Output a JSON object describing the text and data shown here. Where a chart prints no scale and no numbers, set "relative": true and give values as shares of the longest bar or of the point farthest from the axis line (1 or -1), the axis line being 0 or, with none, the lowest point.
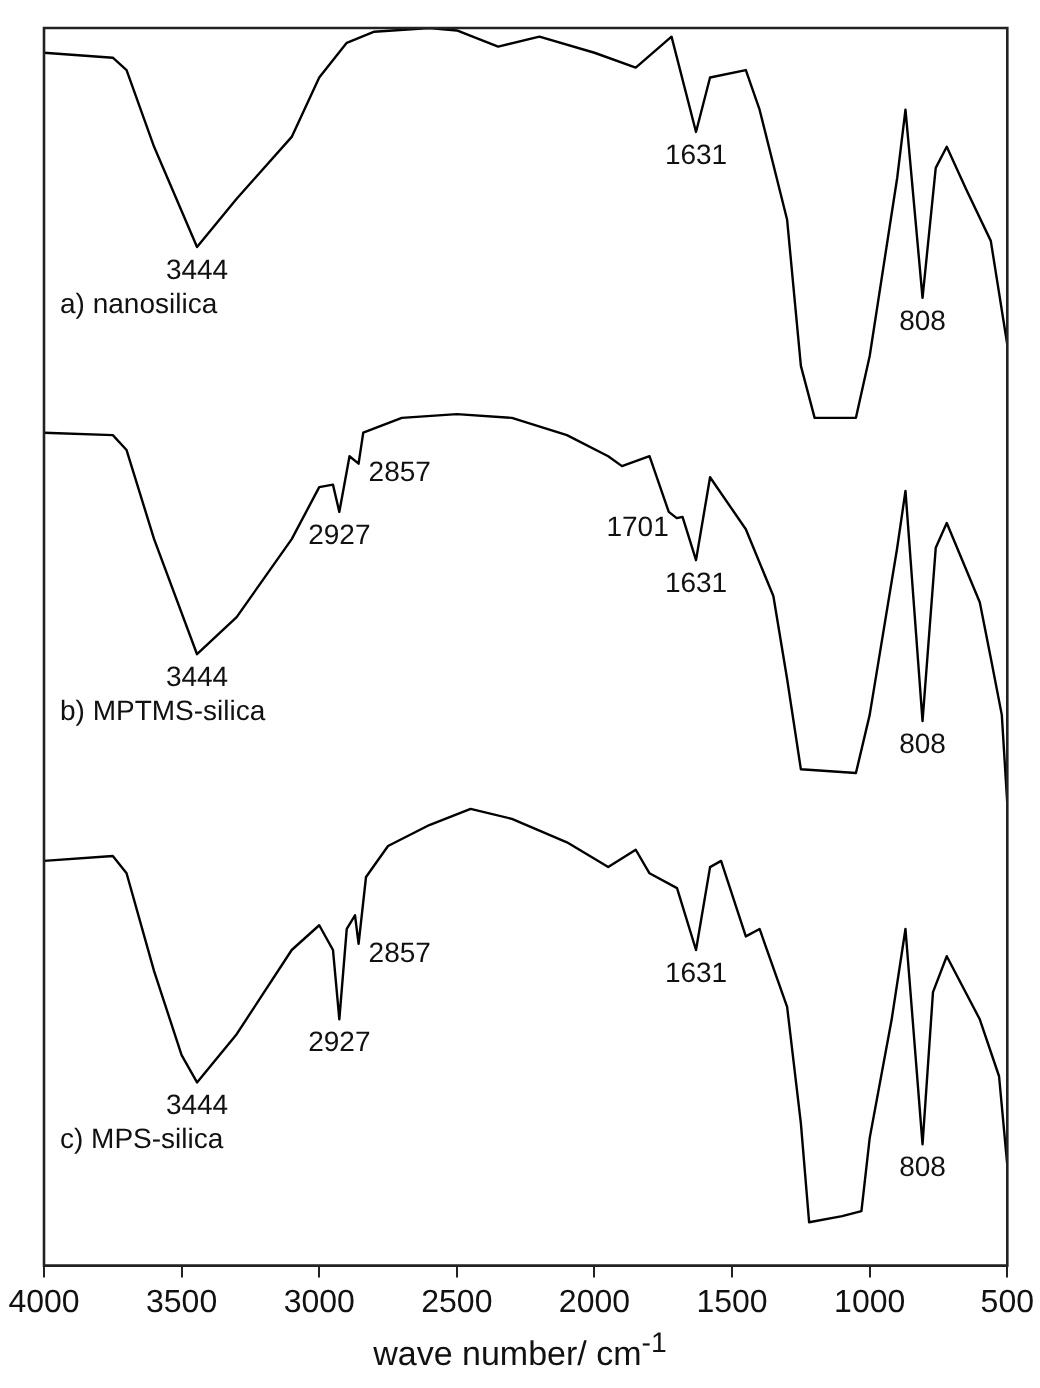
{
  "chart_data": {
    "type": "line",
    "relative": true,
    "xlabel": "wave number/ cm$^{-1}$",
    "xlim": [
      4000,
      500
    ],
    "xticks": [
      4000,
      3500,
      3000,
      2500,
      2000,
      1500,
      1000,
      500
    ],
    "grid": false,
    "legend": false,
    "marker": "none",
    "line_style": "solid",
    "series": [
      {
        "name": "a) nanosilica",
        "color": "#000000",
        "x": [
          4000,
          3750,
          3700,
          3600,
          3444,
          3300,
          3100,
          3000,
          2900,
          2800,
          2600,
          2500,
          2350,
          2200,
          2000,
          1850,
          1720,
          1631,
          1580,
          1450,
          1400,
          1300,
          1250,
          1200,
          1050,
          1000,
          900,
          870,
          808,
          760,
          720,
          650,
          560,
          500
        ],
        "values": [
          0.98,
          0.976,
          0.966,
          0.904,
          0.823,
          0.862,
          0.912,
          0.96,
          0.988,
          0.997,
          1.0,
          0.998,
          0.985,
          0.993,
          0.98,
          0.968,
          0.993,
          0.916,
          0.96,
          0.966,
          0.934,
          0.845,
          0.727,
          0.685,
          0.685,
          0.735,
          0.879,
          0.934,
          0.782,
          0.887,
          0.904,
          0.87,
          0.828,
          0.744
        ]
      },
      {
        "name": "b) MPTMS-silica",
        "color": "#000000",
        "x": [
          4000,
          3750,
          3700,
          3600,
          3444,
          3300,
          3100,
          3000,
          2950,
          2927,
          2890,
          2857,
          2840,
          2700,
          2500,
          2300,
          2100,
          1950,
          1900,
          1800,
          1730,
          1701,
          1680,
          1631,
          1580,
          1450,
          1350,
          1300,
          1250,
          1050,
          1000,
          900,
          870,
          808,
          760,
          720,
          600,
          560,
          520,
          500
        ],
        "values": [
          0.673,
          0.671,
          0.659,
          0.587,
          0.494,
          0.524,
          0.587,
          0.629,
          0.631,
          0.609,
          0.654,
          0.648,
          0.673,
          0.685,
          0.688,
          0.685,
          0.671,
          0.654,
          0.646,
          0.654,
          0.609,
          0.604,
          0.605,
          0.57,
          0.637,
          0.595,
          0.541,
          0.474,
          0.401,
          0.398,
          0.445,
          0.58,
          0.626,
          0.44,
          0.58,
          0.6,
          0.536,
          0.491,
          0.445,
          0.373
        ]
      },
      {
        "name": "c) MPS-silica",
        "color": "#000000",
        "x": [
          4000,
          3750,
          3700,
          3600,
          3500,
          3444,
          3300,
          3100,
          3000,
          2950,
          2927,
          2900,
          2870,
          2857,
          2830,
          2750,
          2600,
          2450,
          2300,
          2100,
          1950,
          1850,
          1800,
          1700,
          1631,
          1580,
          1540,
          1450,
          1400,
          1300,
          1250,
          1220,
          1100,
          1030,
          1000,
          920,
          870,
          808,
          770,
          720,
          600,
          530,
          500
        ],
        "values": [
          0.327,
          0.331,
          0.317,
          0.238,
          0.17,
          0.148,
          0.187,
          0.255,
          0.275,
          0.255,
          0.199,
          0.272,
          0.283,
          0.26,
          0.314,
          0.339,
          0.356,
          0.369,
          0.361,
          0.342,
          0.322,
          0.336,
          0.317,
          0.305,
          0.255,
          0.322,
          0.327,
          0.266,
          0.272,
          0.209,
          0.115,
          0.035,
          0.04,
          0.044,
          0.103,
          0.199,
          0.272,
          0.098,
          0.221,
          0.25,
          0.199,
          0.153,
          0.081
        ]
      }
    ],
    "annotations": [
      {
        "text": "3444",
        "x": 3444,
        "y": 0.823
      },
      {
        "text": "1631",
        "x": 1631,
        "y": 0.916
      },
      {
        "text": "808",
        "x": 808,
        "y": 0.782
      },
      {
        "text": "3444",
        "x": 3444,
        "y": 0.494
      },
      {
        "text": "2927",
        "x": 2927,
        "y": 0.609
      },
      {
        "text": "2857",
        "x": 2857,
        "y": 0.648
      },
      {
        "text": "1701",
        "x": 1701,
        "y": 0.604
      },
      {
        "text": "1631",
        "x": 1631,
        "y": 0.57
      },
      {
        "text": "808",
        "x": 808,
        "y": 0.44
      },
      {
        "text": "3444",
        "x": 3444,
        "y": 0.148
      },
      {
        "text": "2927",
        "x": 2927,
        "y": 0.199
      },
      {
        "text": "2857",
        "x": 2857,
        "y": 0.26
      },
      {
        "text": "1631",
        "x": 1631,
        "y": 0.255
      },
      {
        "text": "808",
        "x": 808,
        "y": 0.098
      }
    ]
  }
}
